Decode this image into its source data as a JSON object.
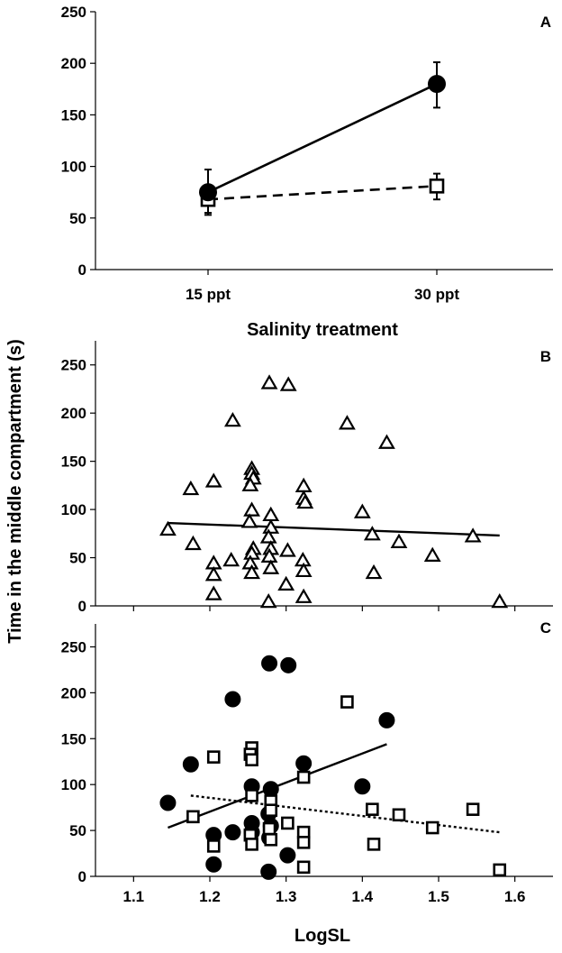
{
  "y_axis_title": "Time in the middle compartment (s)",
  "chart_data": [
    {
      "panel": "A",
      "type": "line",
      "xlabel": "Salinity treatment",
      "categories": [
        "15 ppt",
        "30 ppt"
      ],
      "ylim": [
        0,
        250
      ],
      "yticks": [
        0,
        50,
        100,
        150,
        200,
        250
      ],
      "series": [
        {
          "name": "filled circles",
          "marker": "circle-filled",
          "line": "solid",
          "values": [
            75,
            180
          ],
          "err_upper": [
            97,
            201
          ],
          "err_lower": [
            55,
            157
          ]
        },
        {
          "name": "open squares",
          "marker": "square-open",
          "line": "dashed",
          "values": [
            68,
            81
          ],
          "err_upper": [
            75,
            93
          ],
          "err_lower": [
            53,
            68
          ]
        }
      ]
    },
    {
      "panel": "B",
      "type": "scatter",
      "xlim": [
        1.05,
        1.65
      ],
      "ylim": [
        0,
        275
      ],
      "yticks": [
        0,
        50,
        100,
        150,
        200,
        250
      ],
      "marker": "triangle-open",
      "points": [
        [
          1.145,
          80
        ],
        [
          1.175,
          122
        ],
        [
          1.178,
          65
        ],
        [
          1.205,
          130
        ],
        [
          1.205,
          45
        ],
        [
          1.205,
          33
        ],
        [
          1.205,
          13
        ],
        [
          1.23,
          193
        ],
        [
          1.228,
          48
        ],
        [
          1.255,
          143
        ],
        [
          1.255,
          138
        ],
        [
          1.257,
          133
        ],
        [
          1.253,
          126
        ],
        [
          1.255,
          100
        ],
        [
          1.252,
          88
        ],
        [
          1.257,
          60
        ],
        [
          1.255,
          55
        ],
        [
          1.253,
          45
        ],
        [
          1.255,
          35
        ],
        [
          1.278,
          232
        ],
        [
          1.28,
          95
        ],
        [
          1.28,
          82
        ],
        [
          1.277,
          72
        ],
        [
          1.28,
          60
        ],
        [
          1.278,
          52
        ],
        [
          1.28,
          40
        ],
        [
          1.277,
          5
        ],
        [
          1.303,
          230
        ],
        [
          1.302,
          58
        ],
        [
          1.3,
          23
        ],
        [
          1.323,
          125
        ],
        [
          1.323,
          112
        ],
        [
          1.325,
          108
        ],
        [
          1.322,
          48
        ],
        [
          1.323,
          37
        ],
        [
          1.323,
          10
        ],
        [
          1.38,
          190
        ],
        [
          1.4,
          98
        ],
        [
          1.413,
          75
        ],
        [
          1.415,
          35
        ],
        [
          1.432,
          170
        ],
        [
          1.448,
          67
        ],
        [
          1.492,
          53
        ],
        [
          1.545,
          73
        ],
        [
          1.58,
          5
        ]
      ],
      "fit_line": {
        "x": [
          1.145,
          1.58
        ],
        "y": [
          86,
          73
        ]
      }
    },
    {
      "panel": "C",
      "type": "scatter",
      "xlabel": "LogSL",
      "xlim": [
        1.05,
        1.65
      ],
      "xticks": [
        "1.1",
        "1.2",
        "1.3",
        "1.4",
        "1.5",
        "1.6"
      ],
      "ylim": [
        0,
        275
      ],
      "yticks": [
        0,
        50,
        100,
        150,
        200,
        250
      ],
      "series": [
        {
          "name": "filled circles",
          "marker": "circle-filled",
          "points": [
            [
              1.145,
              80
            ],
            [
              1.175,
              122
            ],
            [
              1.205,
              45
            ],
            [
              1.205,
              13
            ],
            [
              1.23,
              193
            ],
            [
              1.23,
              48
            ],
            [
              1.255,
              98
            ],
            [
              1.255,
              58
            ],
            [
              1.255,
              48
            ],
            [
              1.278,
              232
            ],
            [
              1.28,
              95
            ],
            [
              1.277,
              68
            ],
            [
              1.28,
              55
            ],
            [
              1.278,
              42
            ],
            [
              1.277,
              5
            ],
            [
              1.303,
              230
            ],
            [
              1.302,
              23
            ],
            [
              1.323,
              123
            ],
            [
              1.4,
              98
            ],
            [
              1.432,
              170
            ]
          ],
          "fit_line": {
            "x": [
              1.145,
              1.432
            ],
            "y": [
              53,
              144
            ]
          }
        },
        {
          "name": "open squares",
          "marker": "square-open",
          "points": [
            [
              1.178,
              65
            ],
            [
              1.205,
              130
            ],
            [
              1.205,
              33
            ],
            [
              1.255,
              140
            ],
            [
              1.253,
              133
            ],
            [
              1.255,
              127
            ],
            [
              1.255,
              88
            ],
            [
              1.253,
              45
            ],
            [
              1.255,
              35
            ],
            [
              1.28,
              82
            ],
            [
              1.28,
              72
            ],
            [
              1.278,
              52
            ],
            [
              1.28,
              40
            ],
            [
              1.302,
              58
            ],
            [
              1.323,
              108
            ],
            [
              1.323,
              48
            ],
            [
              1.323,
              37
            ],
            [
              1.323,
              10
            ],
            [
              1.38,
              190
            ],
            [
              1.413,
              73
            ],
            [
              1.415,
              35
            ],
            [
              1.448,
              67
            ],
            [
              1.492,
              53
            ],
            [
              1.545,
              73
            ],
            [
              1.58,
              7
            ]
          ],
          "fit_line": {
            "x": [
              1.175,
              1.58
            ],
            "y": [
              88,
              48
            ],
            "style": "dotted"
          }
        }
      ]
    }
  ]
}
